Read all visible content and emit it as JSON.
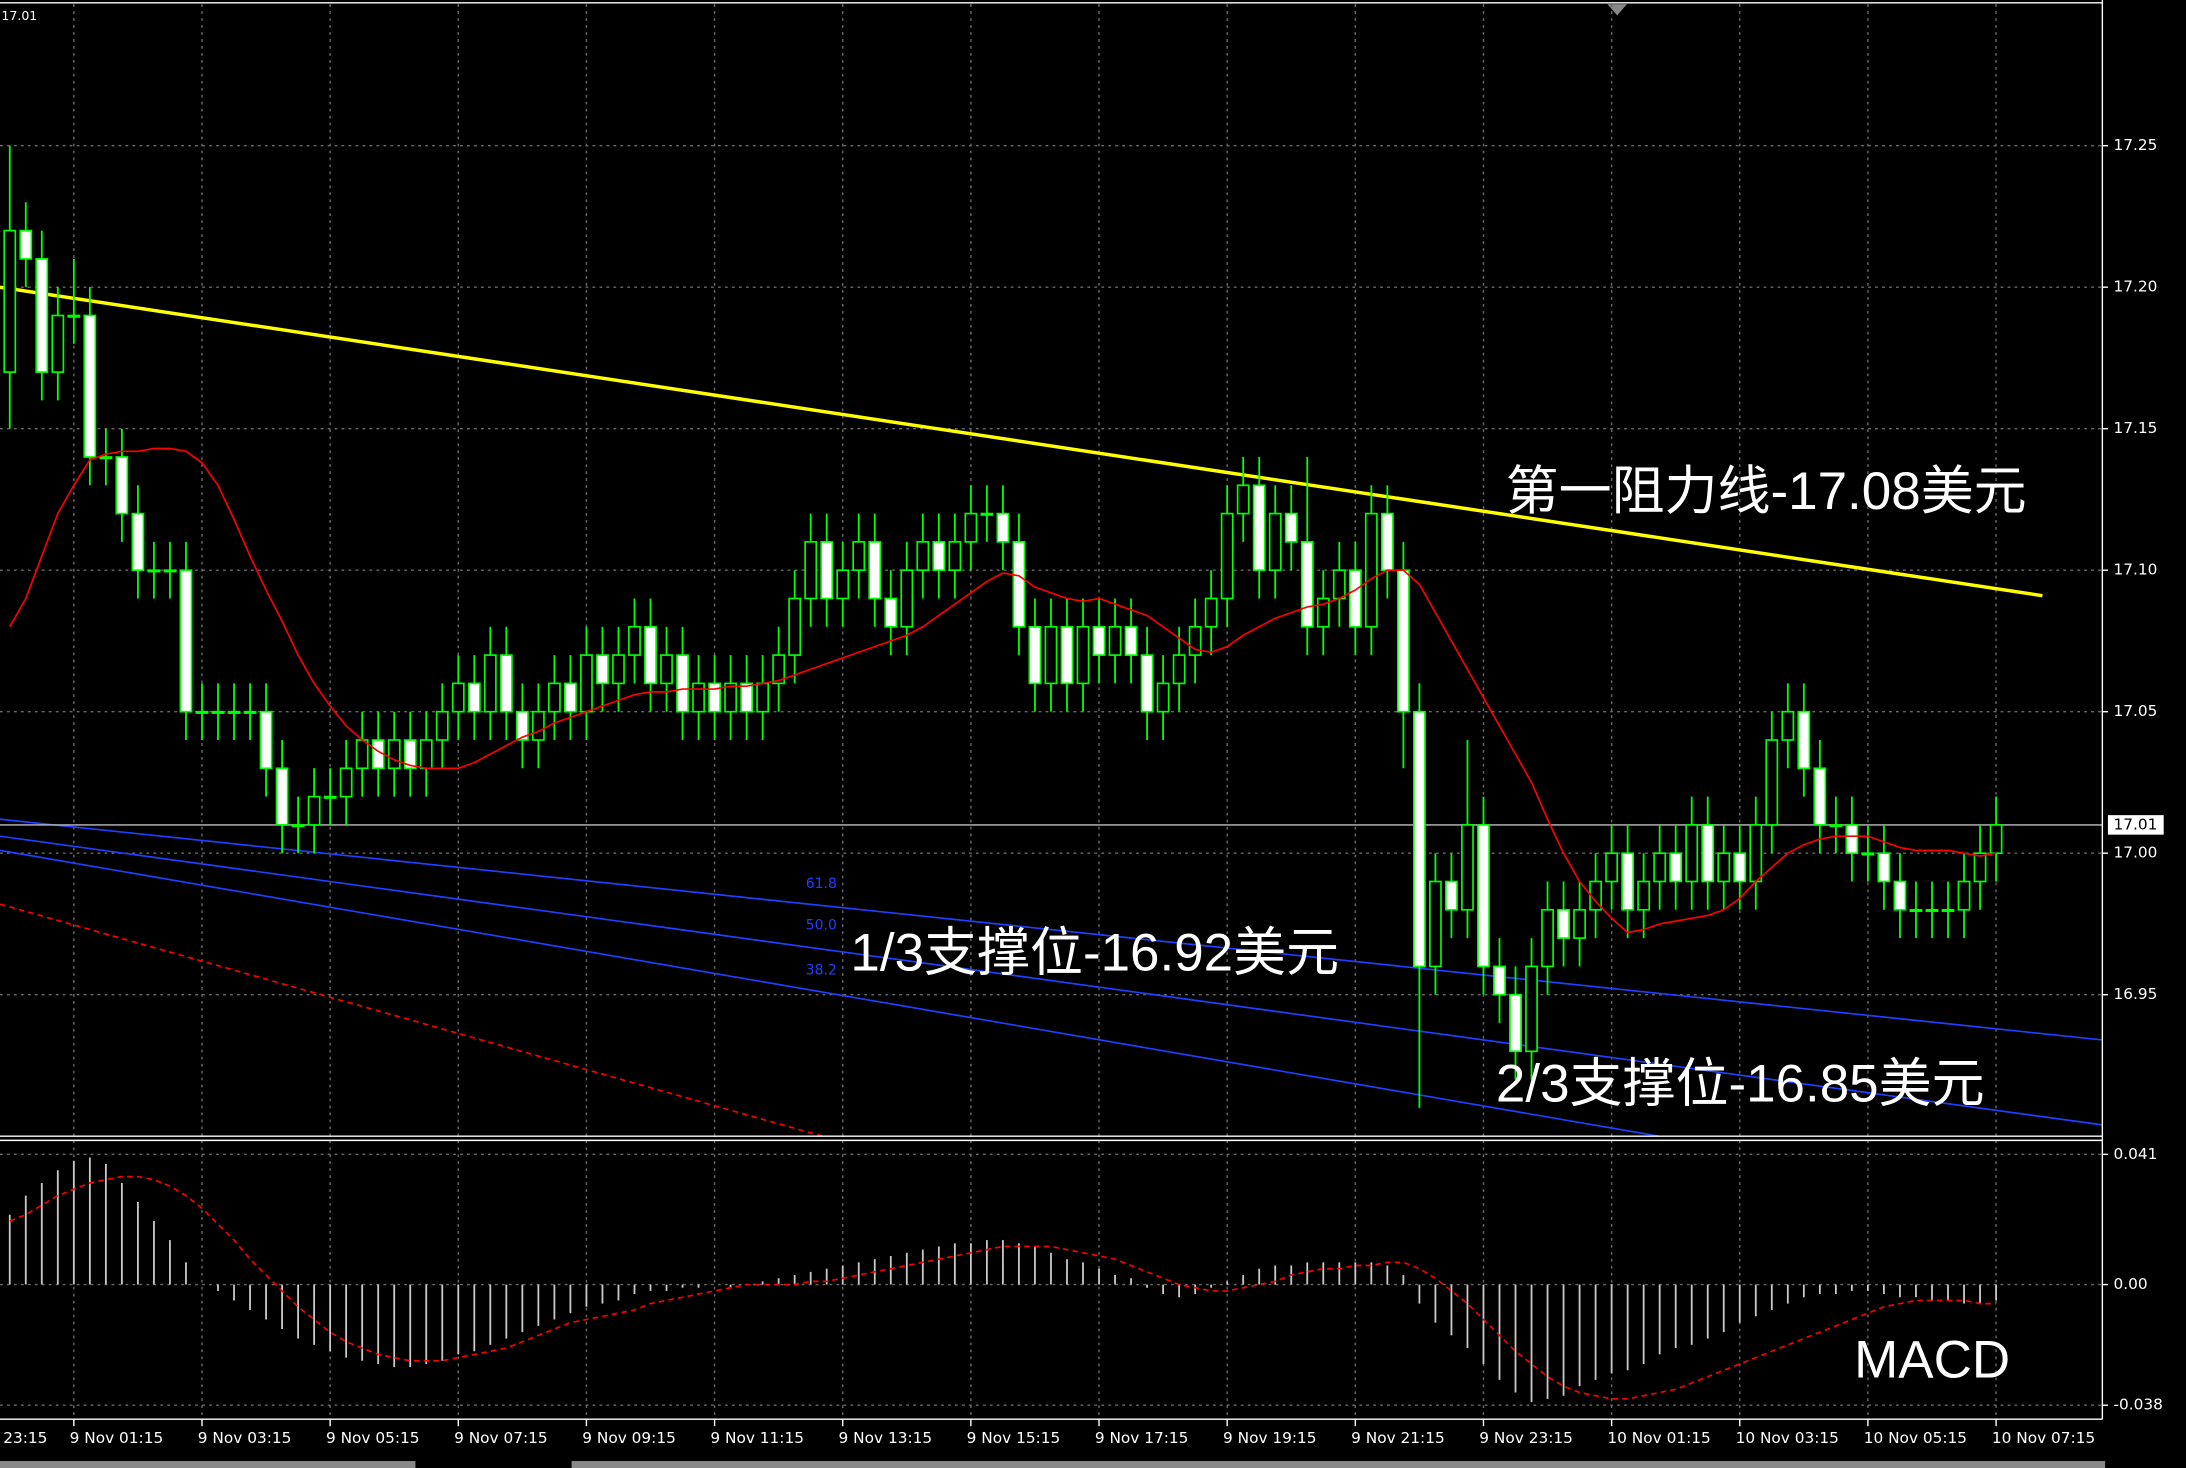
{
  "chart_data": [
    {
      "type": "candlestick",
      "edge_label": "23:15",
      "grid": true,
      "categories": [
        null,
        null,
        null,
        null,
        "9 Nov 01:15",
        null,
        null,
        null,
        null,
        null,
        null,
        null,
        "9 Nov 03:15",
        null,
        null,
        null,
        null,
        null,
        null,
        null,
        "9 Nov 05:15",
        null,
        null,
        null,
        null,
        null,
        null,
        null,
        "9 Nov 07:15",
        null,
        null,
        null,
        null,
        null,
        null,
        null,
        "9 Nov 09:15",
        null,
        null,
        null,
        null,
        null,
        null,
        null,
        "9 Nov 11:15",
        null,
        null,
        null,
        null,
        null,
        null,
        null,
        "9 Nov 13:15",
        null,
        null,
        null,
        null,
        null,
        null,
        null,
        "9 Nov 15:15",
        null,
        null,
        null,
        null,
        null,
        null,
        null,
        "9 Nov 17:15",
        null,
        null,
        null,
        null,
        null,
        null,
        null,
        "9 Nov 19:15",
        null,
        null,
        null,
        null,
        null,
        null,
        null,
        "9 Nov 21:15",
        null,
        null,
        null,
        null,
        null,
        null,
        null,
        "9 Nov 23:15",
        null,
        null,
        null,
        null,
        null,
        null,
        null,
        "10 Nov 01:15",
        null,
        null,
        null,
        null,
        null,
        null,
        null,
        "10 Nov 03:15",
        null,
        null,
        null,
        null,
        null,
        null,
        null,
        "10 Nov 05:15",
        null,
        null,
        null,
        null,
        null,
        null,
        null,
        "10 Nov 07:15"
      ],
      "open": [
        17.17,
        17.22,
        17.21,
        17.17,
        17.19,
        17.19,
        17.14,
        17.14,
        17.12,
        17.1,
        17.1,
        17.1,
        17.05,
        17.05,
        17.05,
        17.05,
        17.05,
        17.03,
        17.01,
        17.01,
        17.02,
        17.02,
        17.03,
        17.04,
        17.03,
        17.04,
        17.03,
        17.04,
        17.05,
        17.06,
        17.05,
        17.07,
        17.05,
        17.04,
        17.05,
        17.06,
        17.05,
        17.07,
        17.06,
        17.07,
        17.08,
        17.06,
        17.07,
        17.05,
        17.06,
        17.05,
        17.06,
        17.05,
        17.06,
        17.07,
        17.09,
        17.11,
        17.09,
        17.1,
        17.11,
        17.09,
        17.08,
        17.1,
        17.11,
        17.1,
        17.11,
        17.12,
        17.12,
        17.11,
        17.08,
        17.06,
        17.08,
        17.06,
        17.08,
        17.07,
        17.08,
        17.07,
        17.05,
        17.06,
        17.07,
        17.08,
        17.09,
        17.12,
        17.13,
        17.1,
        17.12,
        17.11,
        17.08,
        17.09,
        17.1,
        17.08,
        17.12,
        17.1,
        17.05,
        16.96,
        16.99,
        16.98,
        17.01,
        16.96,
        16.95,
        16.93,
        16.96,
        16.98,
        16.97,
        16.98,
        16.99,
        17.0,
        16.98,
        16.99,
        17.0,
        16.99,
        17.01,
        16.99,
        17.0,
        16.99,
        17.01,
        17.04,
        17.05,
        17.03,
        17.01,
        17.01,
        17.0,
        17.0,
        16.99,
        16.98,
        16.98,
        16.98,
        16.98,
        16.99,
        17.0
      ],
      "high": [
        17.25,
        17.23,
        17.22,
        17.2,
        17.21,
        17.2,
        17.15,
        17.15,
        17.13,
        17.11,
        17.11,
        17.11,
        17.06,
        17.06,
        17.06,
        17.06,
        17.06,
        17.04,
        17.02,
        17.03,
        17.03,
        17.04,
        17.05,
        17.05,
        17.05,
        17.05,
        17.05,
        17.06,
        17.07,
        17.07,
        17.08,
        17.08,
        17.06,
        17.06,
        17.07,
        17.07,
        17.08,
        17.08,
        17.08,
        17.09,
        17.09,
        17.08,
        17.08,
        17.07,
        17.07,
        17.07,
        17.07,
        17.07,
        17.08,
        17.1,
        17.12,
        17.12,
        17.11,
        17.12,
        17.12,
        17.1,
        17.11,
        17.12,
        17.12,
        17.12,
        17.13,
        17.13,
        17.13,
        17.12,
        17.09,
        17.09,
        17.09,
        17.09,
        17.09,
        17.09,
        17.09,
        17.08,
        17.07,
        17.08,
        17.09,
        17.1,
        17.13,
        17.14,
        17.14,
        17.13,
        17.13,
        17.14,
        17.1,
        17.11,
        17.11,
        17.13,
        17.13,
        17.11,
        17.06,
        17.0,
        17.0,
        17.04,
        17.02,
        16.97,
        16.96,
        16.97,
        16.99,
        16.99,
        16.99,
        17.0,
        17.01,
        17.01,
        17.0,
        17.01,
        17.01,
        17.02,
        17.02,
        17.01,
        17.01,
        17.02,
        17.05,
        17.06,
        17.06,
        17.04,
        17.02,
        17.02,
        17.01,
        17.01,
        17.0,
        16.99,
        16.99,
        16.99,
        17.0,
        17.01,
        17.02
      ],
      "low": [
        17.15,
        17.2,
        17.16,
        17.16,
        17.18,
        17.13,
        17.13,
        17.11,
        17.09,
        17.09,
        17.09,
        17.04,
        17.04,
        17.04,
        17.04,
        17.04,
        17.02,
        17.0,
        17.0,
        17.0,
        17.01,
        17.01,
        17.02,
        17.02,
        17.02,
        17.02,
        17.02,
        17.03,
        17.04,
        17.04,
        17.04,
        17.04,
        17.03,
        17.03,
        17.04,
        17.04,
        17.04,
        17.05,
        17.05,
        17.06,
        17.05,
        17.05,
        17.04,
        17.04,
        17.04,
        17.04,
        17.04,
        17.04,
        17.05,
        17.06,
        17.08,
        17.08,
        17.08,
        17.09,
        17.08,
        17.07,
        17.07,
        17.09,
        17.09,
        17.09,
        17.1,
        17.11,
        17.1,
        17.07,
        17.05,
        17.05,
        17.05,
        17.05,
        17.06,
        17.06,
        17.06,
        17.04,
        17.04,
        17.05,
        17.06,
        17.07,
        17.08,
        17.11,
        17.09,
        17.09,
        17.1,
        17.07,
        17.07,
        17.08,
        17.07,
        17.07,
        17.09,
        17.03,
        16.91,
        16.95,
        16.97,
        16.97,
        16.95,
        16.94,
        16.92,
        16.92,
        16.95,
        16.96,
        16.96,
        16.97,
        16.98,
        16.97,
        16.97,
        16.98,
        16.98,
        16.98,
        16.98,
        16.98,
        16.98,
        16.98,
        17.0,
        17.03,
        17.02,
        17.0,
        17.0,
        16.99,
        16.99,
        16.98,
        16.97,
        16.97,
        16.97,
        16.97,
        16.97,
        16.98,
        16.99
      ],
      "close": [
        17.22,
        17.21,
        17.17,
        17.19,
        17.19,
        17.14,
        17.14,
        17.12,
        17.1,
        17.1,
        17.1,
        17.05,
        17.05,
        17.05,
        17.05,
        17.05,
        17.03,
        17.01,
        17.01,
        17.02,
        17.02,
        17.03,
        17.04,
        17.03,
        17.04,
        17.03,
        17.04,
        17.05,
        17.06,
        17.05,
        17.07,
        17.05,
        17.04,
        17.05,
        17.06,
        17.05,
        17.07,
        17.06,
        17.07,
        17.08,
        17.06,
        17.07,
        17.05,
        17.06,
        17.05,
        17.06,
        17.05,
        17.06,
        17.07,
        17.09,
        17.11,
        17.09,
        17.1,
        17.11,
        17.09,
        17.08,
        17.1,
        17.11,
        17.1,
        17.11,
        17.12,
        17.12,
        17.11,
        17.08,
        17.06,
        17.08,
        17.06,
        17.08,
        17.07,
        17.08,
        17.07,
        17.05,
        17.06,
        17.07,
        17.08,
        17.09,
        17.12,
        17.13,
        17.1,
        17.12,
        17.11,
        17.08,
        17.09,
        17.1,
        17.08,
        17.12,
        17.1,
        17.05,
        16.96,
        16.99,
        16.98,
        17.01,
        16.96,
        16.95,
        16.93,
        16.96,
        16.98,
        16.97,
        16.98,
        16.99,
        17.0,
        16.98,
        16.99,
        17.0,
        16.99,
        17.01,
        16.99,
        17.0,
        16.99,
        17.01,
        17.04,
        17.05,
        17.03,
        17.01,
        17.01,
        17.0,
        17.0,
        16.99,
        16.98,
        16.98,
        16.98,
        16.98,
        16.99,
        17.0,
        17.01
      ],
      "up_color": "#000000",
      "down_color": "#ffffff",
      "edge_color": "#00ff00",
      "ma": {
        "color": "#ff0000",
        "values": [
          17.08,
          17.09,
          17.105,
          17.12,
          17.13,
          17.139,
          17.141,
          17.142,
          17.142,
          17.143,
          17.143,
          17.142,
          17.138,
          17.13,
          17.118,
          17.105,
          17.093,
          17.082,
          17.07,
          17.06,
          17.052,
          17.045,
          17.04,
          17.036,
          17.033,
          17.031,
          17.03,
          17.03,
          17.03,
          17.032,
          17.035,
          17.038,
          17.041,
          17.043,
          17.046,
          17.048,
          17.05,
          17.052,
          17.054,
          17.056,
          17.057,
          17.057,
          17.058,
          17.058,
          17.058,
          17.059,
          17.059,
          17.06,
          17.061,
          17.063,
          17.065,
          17.067,
          17.069,
          17.071,
          17.073,
          17.075,
          17.077,
          17.08,
          17.084,
          17.088,
          17.092,
          17.096,
          17.099,
          17.098,
          17.094,
          17.092,
          17.09,
          17.089,
          17.09,
          17.088,
          17.086,
          17.084,
          17.08,
          17.076,
          17.072,
          17.071,
          17.073,
          17.077,
          17.08,
          17.083,
          17.085,
          17.087,
          17.088,
          17.09,
          17.093,
          17.097,
          17.1,
          17.1,
          17.095,
          17.085,
          17.075,
          17.065,
          17.055,
          17.045,
          17.035,
          17.025,
          17.012,
          17.0,
          16.99,
          16.983,
          16.977,
          16.972,
          16.973,
          16.975,
          16.976,
          16.977,
          16.978,
          16.98,
          16.984,
          16.99,
          16.995,
          17.0,
          17.003,
          17.005,
          17.006,
          17.006,
          17.006,
          17.004,
          17.002,
          17.001,
          17.001,
          17.001,
          17.0,
          16.999,
          17.0
        ]
      },
      "last_price": 17.01,
      "last_price_color": "#c0c0c0",
      "lines": [
        {
          "color": "#ffff00",
          "values": [
            17.2,
            17.091
          ]
        },
        {
          "color": "#2040ff",
          "values": [
            17.012,
            16.934
          ]
        },
        {
          "color": "#2040ff",
          "values": [
            17.006,
            16.904
          ]
        },
        {
          "color": "#2040ff",
          "values": [
            17.001,
            16.9
          ]
        },
        {
          "color": "#ff0000",
          "dashed": true,
          "values": [
            16.982,
            16.9
          ]
        }
      ],
      "fib_labels": [
        "61.8",
        "50.0",
        "38.2"
      ],
      "annotations": [
        "第一阻力线-17.08美元",
        "1/3支撑位-16.92美元",
        "2/3支撑位-16.85美元"
      ],
      "ylim": [
        16.9,
        17.3
      ],
      "yticks": [
        16.95,
        {
          "value": 17.0,
          "label": "17.00"
        },
        17.05,
        {
          "value": 17.1,
          "label": "17.10"
        },
        17.15,
        {
          "value": 17.2,
          "label": "17.20"
        },
        17.25
      ]
    },
    {
      "type": "macd",
      "title": "MACD",
      "histogram": {
        "color": "#c8c8c8",
        "values": [
          0.022,
          0.028,
          0.032,
          0.036,
          0.039,
          0.04,
          0.038,
          0.032,
          0.026,
          0.02,
          0.014,
          0.007,
          0.0,
          -0.002,
          -0.005,
          -0.008,
          -0.011,
          -0.014,
          -0.017,
          -0.019,
          -0.021,
          -0.023,
          -0.024,
          -0.025,
          -0.026,
          -0.026,
          -0.025,
          -0.024,
          -0.022,
          -0.021,
          -0.019,
          -0.017,
          -0.015,
          -0.013,
          -0.011,
          -0.009,
          -0.007,
          -0.006,
          -0.005,
          -0.003,
          -0.002,
          -0.002,
          -0.001,
          -0.001,
          0.0,
          -0.001,
          0.0,
          0.001,
          0.002,
          0.003,
          0.004,
          0.005,
          0.006,
          0.007,
          0.008,
          0.009,
          0.01,
          0.011,
          0.012,
          0.013,
          0.013,
          0.014,
          0.014,
          0.013,
          0.012,
          0.01,
          0.008,
          0.007,
          0.005,
          0.003,
          0.002,
          -0.001,
          -0.003,
          -0.004,
          -0.003,
          -0.001,
          0.001,
          0.003,
          0.005,
          0.006,
          0.006,
          0.007,
          0.007,
          0.007,
          0.007,
          0.007,
          0.006,
          0.003,
          -0.006,
          -0.012,
          -0.016,
          -0.02,
          -0.025,
          -0.03,
          -0.034,
          -0.037,
          -0.036,
          -0.035,
          -0.032,
          -0.03,
          -0.028,
          -0.027,
          -0.025,
          -0.022,
          -0.02,
          -0.019,
          -0.017,
          -0.015,
          -0.012,
          -0.01,
          -0.008,
          -0.006,
          -0.004,
          -0.003,
          -0.003,
          -0.002,
          -0.002,
          -0.003,
          -0.004,
          -0.004,
          -0.005,
          -0.005,
          -0.006,
          -0.006,
          -0.005
        ]
      },
      "signal": {
        "color": "#ff0000",
        "values": [
          0.02,
          0.022,
          0.025,
          0.028,
          0.03,
          0.032,
          0.033,
          0.034,
          0.034,
          0.033,
          0.031,
          0.028,
          0.024,
          0.019,
          0.014,
          0.008,
          0.003,
          -0.002,
          -0.007,
          -0.011,
          -0.015,
          -0.018,
          -0.02,
          -0.022,
          -0.023,
          -0.024,
          -0.024,
          -0.024,
          -0.023,
          -0.022,
          -0.021,
          -0.02,
          -0.018,
          -0.016,
          -0.014,
          -0.012,
          -0.011,
          -0.01,
          -0.009,
          -0.008,
          -0.006,
          -0.005,
          -0.004,
          -0.003,
          -0.002,
          -0.001,
          0.0,
          0.0,
          0.0,
          0.0,
          0.001,
          0.001,
          0.002,
          0.003,
          0.004,
          0.005,
          0.006,
          0.007,
          0.008,
          0.009,
          0.01,
          0.011,
          0.012,
          0.012,
          0.012,
          0.012,
          0.011,
          0.01,
          0.009,
          0.008,
          0.006,
          0.004,
          0.002,
          0.0,
          -0.001,
          -0.002,
          -0.002,
          -0.001,
          0.0,
          0.001,
          0.003,
          0.004,
          0.005,
          0.005,
          0.006,
          0.006,
          0.007,
          0.007,
          0.005,
          0.002,
          -0.002,
          -0.006,
          -0.011,
          -0.016,
          -0.021,
          -0.025,
          -0.029,
          -0.032,
          -0.034,
          -0.035,
          -0.036,
          -0.036,
          -0.035,
          -0.034,
          -0.033,
          -0.031,
          -0.029,
          -0.027,
          -0.025,
          -0.023,
          -0.021,
          -0.019,
          -0.017,
          -0.015,
          -0.013,
          -0.011,
          -0.009,
          -0.007,
          -0.006,
          -0.005,
          -0.005,
          -0.005,
          -0.005,
          -0.006,
          -0.006
        ]
      },
      "ylim": [
        -0.0424,
        0.0454
      ],
      "yticks": [
        0.041,
        {
          "value": 0,
          "label": "0.00"
        },
        -0.038
      ]
    }
  ]
}
